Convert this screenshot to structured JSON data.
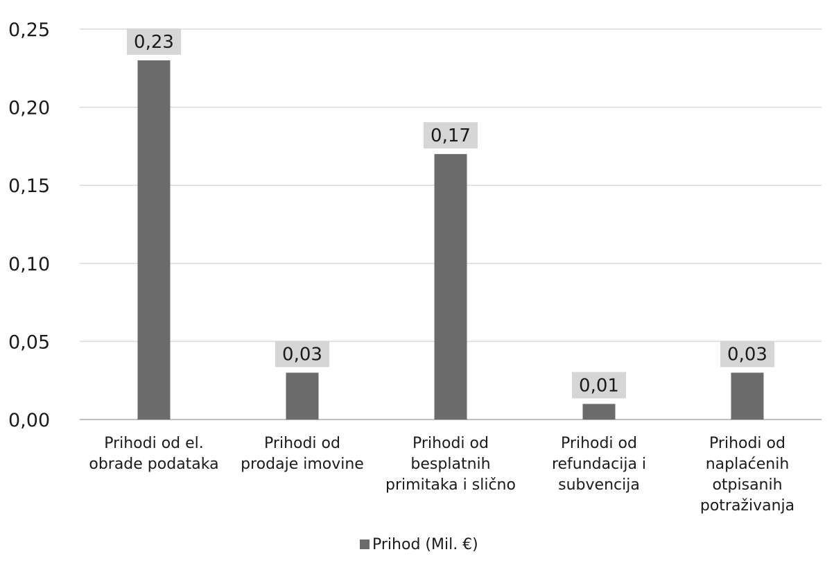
{
  "chart_data": {
    "type": "bar",
    "categories": [
      [
        "Prihodi od el.",
        "obrade podataka"
      ],
      [
        "Prihodi od",
        "prodaje imovine"
      ],
      [
        "Prihodi od",
        "besplatnih",
        "primitaka i slično"
      ],
      [
        "Prihodi od",
        "refundacija i",
        "subvencija"
      ],
      [
        "Prihodi od",
        "naplaćenih",
        "otpisanih",
        "potraživanja"
      ]
    ],
    "series": [
      {
        "name": "Prihod (Mil. €)",
        "values": [
          0.23,
          0.03,
          0.17,
          0.01,
          0.03
        ],
        "data_labels": [
          "0,23",
          "0,03",
          "0,17",
          "0,01",
          "0,03"
        ]
      }
    ],
    "ylim": [
      0,
      0.25
    ],
    "yticks": [
      0,
      0.05,
      0.1,
      0.15,
      0.2,
      0.25
    ],
    "ytick_labels": [
      "0,00",
      "0,05",
      "0,10",
      "0,15",
      "0,20",
      "0,25"
    ],
    "grid": true,
    "legend_position": "bottom-center",
    "colors": {
      "bar": "#6b6b6b",
      "grid": "#d9d9d9",
      "axis": "#bfbfbf",
      "label_box": "#d6d6d6"
    }
  }
}
